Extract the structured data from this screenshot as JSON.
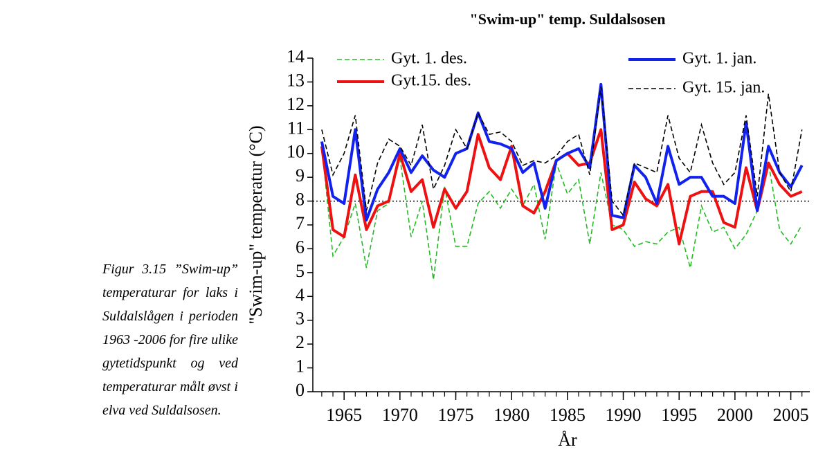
{
  "caption": "Figur 3.15 ”Swim-up” temperaturar for laks i Suldalslågen i perioden 1963 -2006 for fire ulike gytetidspunkt og ved temperaturar målt øvst i elva ved Suldalsosen.",
  "chart_data": {
    "type": "line",
    "title": "\"Swim-up\" temp. Suldalsosen",
    "x_label": "År",
    "y_label": "\"Swim-up\" temperatur (°C)",
    "x": [
      1963,
      1964,
      1965,
      1966,
      1967,
      1968,
      1969,
      1970,
      1971,
      1972,
      1973,
      1974,
      1975,
      1976,
      1977,
      1978,
      1979,
      1980,
      1981,
      1982,
      1983,
      1984,
      1985,
      1986,
      1987,
      1988,
      1989,
      1990,
      1991,
      1992,
      1993,
      1994,
      1995,
      1996,
      1997,
      1998,
      1999,
      2000,
      2001,
      2002,
      2003,
      2004,
      2005,
      2006
    ],
    "xlim": [
      1962.2,
      2006.7
    ],
    "xticks": [
      1965,
      1970,
      1975,
      1980,
      1985,
      1990,
      1995,
      2000,
      2005
    ],
    "ylim": [
      0,
      14
    ],
    "yticks": [
      0,
      1,
      2,
      3,
      4,
      5,
      6,
      7,
      8,
      9,
      10,
      11,
      12,
      13,
      14
    ],
    "hline": 8,
    "series": [
      {
        "name": "Gyt. 1. des.",
        "color": "#22bb22",
        "style": "dashed",
        "values": [
          10.3,
          5.7,
          6.5,
          7.9,
          5.2,
          7.6,
          7.9,
          9.8,
          6.5,
          8.0,
          4.7,
          8.6,
          6.1,
          6.1,
          7.9,
          8.4,
          7.7,
          8.5,
          7.8,
          8.7,
          6.4,
          9.6,
          8.3,
          8.9,
          6.2,
          9.2,
          7.0,
          6.8,
          6.1,
          6.3,
          6.2,
          6.7,
          6.9,
          5.2,
          7.8,
          6.7,
          6.9,
          6.0,
          6.6,
          7.6,
          9.6,
          6.8,
          6.2,
          7.0
        ]
      },
      {
        "name": "Gyt.15. des.",
        "color": "#ee1111",
        "style": "solid",
        "values": [
          10.3,
          6.8,
          6.5,
          9.1,
          6.8,
          7.8,
          8.0,
          10.0,
          8.4,
          8.9,
          6.9,
          8.5,
          7.7,
          8.4,
          10.8,
          9.4,
          8.9,
          10.3,
          7.8,
          7.5,
          8.4,
          9.7,
          10.0,
          9.5,
          9.6,
          11.0,
          6.8,
          7.0,
          8.8,
          8.1,
          7.8,
          8.7,
          6.2,
          8.2,
          8.4,
          8.4,
          7.1,
          6.9,
          9.4,
          7.6,
          9.6,
          8.7,
          8.2,
          8.4
        ]
      },
      {
        "name": "Gyt. 1. jan.",
        "color": "#1122ee",
        "style": "solid",
        "values": [
          10.5,
          8.2,
          7.9,
          11.0,
          7.2,
          8.5,
          9.2,
          10.2,
          9.2,
          9.9,
          9.3,
          9.0,
          10.0,
          10.2,
          11.7,
          10.5,
          10.4,
          10.2,
          9.2,
          9.6,
          7.7,
          9.7,
          10.0,
          10.2,
          9.4,
          12.9,
          7.4,
          7.3,
          9.5,
          9.0,
          7.9,
          10.3,
          8.7,
          9.0,
          9.0,
          8.2,
          8.2,
          7.9,
          11.3,
          7.6,
          10.3,
          9.2,
          8.6,
          9.5
        ]
      },
      {
        "name": "Gyt. 15. jan.",
        "color": "#000000",
        "style": "dashed",
        "values": [
          11.0,
          9.1,
          10.0,
          11.6,
          7.6,
          9.6,
          10.6,
          10.3,
          9.5,
          11.2,
          8.5,
          9.5,
          11.0,
          10.2,
          11.7,
          10.8,
          10.9,
          10.5,
          9.5,
          9.7,
          9.6,
          9.9,
          10.5,
          10.8,
          9.1,
          12.8,
          8.0,
          7.4,
          9.6,
          9.4,
          9.2,
          11.6,
          9.8,
          9.2,
          11.2,
          9.6,
          8.7,
          9.2,
          11.6,
          8.2,
          12.5,
          9.2,
          8.4,
          11.0
        ]
      }
    ]
  }
}
